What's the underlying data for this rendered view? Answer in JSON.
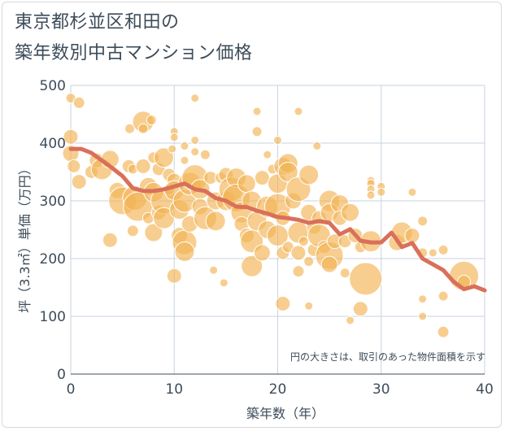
{
  "title": {
    "line1": "東京都杉並区和田の",
    "line2": "築年数別中古マンション価格"
  },
  "chart_data": {
    "type": "scatter",
    "xlabel": "築年数（年）",
    "ylabel": "坪（3.3㎡）単価（万円）",
    "xlim": [
      0,
      40
    ],
    "ylim": [
      0,
      500
    ],
    "xticks": [
      "0",
      "10",
      "20",
      "30",
      "40"
    ],
    "yticks": [
      "0",
      "100",
      "200",
      "300",
      "400",
      "500"
    ],
    "grid": true,
    "annotation": "円の大きさは、取引のあった物件面積を示す",
    "colors": {
      "bubble": "#f3b454",
      "line": "#d9705a",
      "grid": "#c7d3de",
      "text": "#3d4c5a"
    },
    "bubbles": [
      {
        "x": 0,
        "y": 478,
        "s": 6
      },
      {
        "x": 0,
        "y": 411,
        "s": 9
      },
      {
        "x": 0,
        "y": 382,
        "s": 10
      },
      {
        "x": 0.3,
        "y": 360,
        "s": 8
      },
      {
        "x": 0.8,
        "y": 470,
        "s": 7
      },
      {
        "x": 0.8,
        "y": 333,
        "s": 9
      },
      {
        "x": 2,
        "y": 350,
        "s": 8
      },
      {
        "x": 2.5,
        "y": 370,
        "s": 9
      },
      {
        "x": 3,
        "y": 355,
        "s": 13
      },
      {
        "x": 3.8,
        "y": 372,
        "s": 11
      },
      {
        "x": 3.8,
        "y": 232,
        "s": 9
      },
      {
        "x": 4.5,
        "y": 318,
        "s": 10
      },
      {
        "x": 5,
        "y": 300,
        "s": 17
      },
      {
        "x": 5.6,
        "y": 360,
        "s": 8
      },
      {
        "x": 5.7,
        "y": 425,
        "s": 6
      },
      {
        "x": 6,
        "y": 355,
        "s": 6
      },
      {
        "x": 6,
        "y": 248,
        "s": 7
      },
      {
        "x": 6.2,
        "y": 305,
        "s": 15
      },
      {
        "x": 6.5,
        "y": 290,
        "s": 18
      },
      {
        "x": 7,
        "y": 437,
        "s": 13
      },
      {
        "x": 7,
        "y": 425,
        "s": 6
      },
      {
        "x": 7,
        "y": 360,
        "s": 9
      },
      {
        "x": 7.5,
        "y": 325,
        "s": 11
      },
      {
        "x": 7.5,
        "y": 270,
        "s": 7
      },
      {
        "x": 7.8,
        "y": 440,
        "s": 6
      },
      {
        "x": 8,
        "y": 375,
        "s": 7
      },
      {
        "x": 8,
        "y": 315,
        "s": 12
      },
      {
        "x": 8,
        "y": 245,
        "s": 11
      },
      {
        "x": 8.5,
        "y": 280,
        "s": 9
      },
      {
        "x": 8.5,
        "y": 355,
        "s": 8
      },
      {
        "x": 9,
        "y": 375,
        "s": 12
      },
      {
        "x": 9,
        "y": 300,
        "s": 16
      },
      {
        "x": 9,
        "y": 270,
        "s": 13
      },
      {
        "x": 9.5,
        "y": 345,
        "s": 8
      },
      {
        "x": 9.5,
        "y": 320,
        "s": 7
      },
      {
        "x": 9.8,
        "y": 390,
        "s": 5
      },
      {
        "x": 10,
        "y": 420,
        "s": 5
      },
      {
        "x": 10,
        "y": 410,
        "s": 5
      },
      {
        "x": 10,
        "y": 335,
        "s": 9
      },
      {
        "x": 10,
        "y": 318,
        "s": 12
      },
      {
        "x": 10,
        "y": 170,
        "s": 9
      },
      {
        "x": 10.5,
        "y": 285,
        "s": 12
      },
      {
        "x": 10.5,
        "y": 240,
        "s": 10
      },
      {
        "x": 11,
        "y": 300,
        "s": 14
      },
      {
        "x": 11,
        "y": 228,
        "s": 15
      },
      {
        "x": 11,
        "y": 212,
        "s": 12
      },
      {
        "x": 11,
        "y": 395,
        "s": 5
      },
      {
        "x": 11,
        "y": 370,
        "s": 5
      },
      {
        "x": 11.5,
        "y": 330,
        "s": 14
      },
      {
        "x": 11.5,
        "y": 260,
        "s": 10
      },
      {
        "x": 12,
        "y": 478,
        "s": 5
      },
      {
        "x": 12,
        "y": 405,
        "s": 5
      },
      {
        "x": 12,
        "y": 385,
        "s": 5
      },
      {
        "x": 12,
        "y": 340,
        "s": 16
      },
      {
        "x": 12.5,
        "y": 320,
        "s": 12
      },
      {
        "x": 12.5,
        "y": 290,
        "s": 10
      },
      {
        "x": 13,
        "y": 380,
        "s": 6
      },
      {
        "x": 13,
        "y": 270,
        "s": 14
      },
      {
        "x": 13.5,
        "y": 340,
        "s": 8
      },
      {
        "x": 13.8,
        "y": 180,
        "s": 5
      },
      {
        "x": 14,
        "y": 300,
        "s": 11
      },
      {
        "x": 14,
        "y": 265,
        "s": 12
      },
      {
        "x": 14.5,
        "y": 340,
        "s": 7
      },
      {
        "x": 14.8,
        "y": 158,
        "s": 5
      },
      {
        "x": 15,
        "y": 345,
        "s": 9
      },
      {
        "x": 15,
        "y": 300,
        "s": 12
      },
      {
        "x": 15.5,
        "y": 320,
        "s": 15
      },
      {
        "x": 16,
        "y": 340,
        "s": 12
      },
      {
        "x": 16,
        "y": 305,
        "s": 17
      },
      {
        "x": 16.5,
        "y": 280,
        "s": 13
      },
      {
        "x": 16.5,
        "y": 260,
        "s": 9
      },
      {
        "x": 17,
        "y": 330,
        "s": 11
      },
      {
        "x": 17,
        "y": 240,
        "s": 9
      },
      {
        "x": 17.5,
        "y": 300,
        "s": 12
      },
      {
        "x": 17.5,
        "y": 230,
        "s": 14
      },
      {
        "x": 17.5,
        "y": 187,
        "s": 13
      },
      {
        "x": 18,
        "y": 455,
        "s": 5
      },
      {
        "x": 18,
        "y": 420,
        "s": 6
      },
      {
        "x": 18,
        "y": 265,
        "s": 12
      },
      {
        "x": 18.5,
        "y": 340,
        "s": 9
      },
      {
        "x": 18.5,
        "y": 210,
        "s": 10
      },
      {
        "x": 19,
        "y": 380,
        "s": 5
      },
      {
        "x": 19,
        "y": 290,
        "s": 13
      },
      {
        "x": 19,
        "y": 250,
        "s": 11
      },
      {
        "x": 19.5,
        "y": 355,
        "s": 6
      },
      {
        "x": 20,
        "y": 330,
        "s": 12
      },
      {
        "x": 20,
        "y": 290,
        "s": 16
      },
      {
        "x": 20,
        "y": 240,
        "s": 13
      },
      {
        "x": 20,
        "y": 405,
        "s": 5
      },
      {
        "x": 20.5,
        "y": 360,
        "s": 11
      },
      {
        "x": 20.5,
        "y": 270,
        "s": 9
      },
      {
        "x": 20.5,
        "y": 210,
        "s": 8
      },
      {
        "x": 20.5,
        "y": 122,
        "s": 9
      },
      {
        "x": 21,
        "y": 365,
        "s": 12
      },
      {
        "x": 21,
        "y": 350,
        "s": 12
      },
      {
        "x": 21,
        "y": 220,
        "s": 7
      },
      {
        "x": 21.5,
        "y": 300,
        "s": 10
      },
      {
        "x": 22,
        "y": 455,
        "s": 5
      },
      {
        "x": 22,
        "y": 320,
        "s": 15
      },
      {
        "x": 22,
        "y": 245,
        "s": 13
      },
      {
        "x": 22,
        "y": 210,
        "s": 9
      },
      {
        "x": 22,
        "y": 178,
        "s": 7
      },
      {
        "x": 22.5,
        "y": 230,
        "s": 6
      },
      {
        "x": 23,
        "y": 345,
        "s": 12
      },
      {
        "x": 23,
        "y": 280,
        "s": 10
      },
      {
        "x": 23,
        "y": 195,
        "s": 6
      },
      {
        "x": 23,
        "y": 118,
        "s": 5
      },
      {
        "x": 23.5,
        "y": 255,
        "s": 9
      },
      {
        "x": 23.5,
        "y": 215,
        "s": 8
      },
      {
        "x": 23.8,
        "y": 395,
        "s": 5
      },
      {
        "x": 24,
        "y": 270,
        "s": 9
      },
      {
        "x": 24,
        "y": 240,
        "s": 14
      },
      {
        "x": 24.5,
        "y": 220,
        "s": 8
      },
      {
        "x": 25,
        "y": 300,
        "s": 13
      },
      {
        "x": 25,
        "y": 280,
        "s": 11
      },
      {
        "x": 25,
        "y": 205,
        "s": 17
      },
      {
        "x": 25,
        "y": 190,
        "s": 10
      },
      {
        "x": 25.5,
        "y": 230,
        "s": 9
      },
      {
        "x": 26,
        "y": 295,
        "s": 11
      },
      {
        "x": 26,
        "y": 270,
        "s": 9
      },
      {
        "x": 26.5,
        "y": 230,
        "s": 8
      },
      {
        "x": 26.5,
        "y": 175,
        "s": 6
      },
      {
        "x": 27,
        "y": 280,
        "s": 11
      },
      {
        "x": 27,
        "y": 93,
        "s": 5
      },
      {
        "x": 27.5,
        "y": 240,
        "s": 9
      },
      {
        "x": 28,
        "y": 220,
        "s": 7
      },
      {
        "x": 28,
        "y": 113,
        "s": 9
      },
      {
        "x": 28.5,
        "y": 165,
        "s": 20
      },
      {
        "x": 29,
        "y": 335,
        "s": 5
      },
      {
        "x": 29,
        "y": 330,
        "s": 5
      },
      {
        "x": 29,
        "y": 320,
        "s": 5
      },
      {
        "x": 29,
        "y": 310,
        "s": 5
      },
      {
        "x": 29,
        "y": 230,
        "s": 13
      },
      {
        "x": 30,
        "y": 325,
        "s": 5
      },
      {
        "x": 30,
        "y": 315,
        "s": 5
      },
      {
        "x": 31.5,
        "y": 228,
        "s": 10
      },
      {
        "x": 32,
        "y": 245,
        "s": 13
      },
      {
        "x": 33,
        "y": 240,
        "s": 9
      },
      {
        "x": 33,
        "y": 315,
        "s": 5
      },
      {
        "x": 34,
        "y": 265,
        "s": 6
      },
      {
        "x": 34,
        "y": 210,
        "s": 6
      },
      {
        "x": 34,
        "y": 130,
        "s": 5
      },
      {
        "x": 34,
        "y": 100,
        "s": 5
      },
      {
        "x": 35,
        "y": 210,
        "s": 5
      },
      {
        "x": 36,
        "y": 215,
        "s": 6
      },
      {
        "x": 36,
        "y": 135,
        "s": 6
      },
      {
        "x": 36,
        "y": 73,
        "s": 7
      },
      {
        "x": 38,
        "y": 170,
        "s": 18
      },
      {
        "x": 38,
        "y": 160,
        "s": 8
      }
    ],
    "series": [
      {
        "x": [
          0,
          1,
          2,
          3,
          4,
          5,
          6,
          7,
          8,
          9,
          10,
          11,
          12,
          13,
          14,
          15,
          16,
          17,
          18,
          19,
          20,
          21,
          22,
          23,
          24,
          25,
          26,
          27,
          28,
          29,
          30,
          31,
          32,
          33,
          34,
          35,
          36,
          37,
          38,
          39,
          40
        ],
        "y": [
          390,
          390,
          383,
          370,
          357,
          343,
          322,
          317,
          317,
          320,
          325,
          330,
          320,
          317,
          305,
          300,
          290,
          289,
          283,
          278,
          272,
          270,
          267,
          262,
          265,
          262,
          242,
          251,
          231,
          228,
          228,
          245,
          220,
          227,
          200,
          190,
          180,
          160,
          147,
          152,
          145
        ]
      }
    ]
  }
}
